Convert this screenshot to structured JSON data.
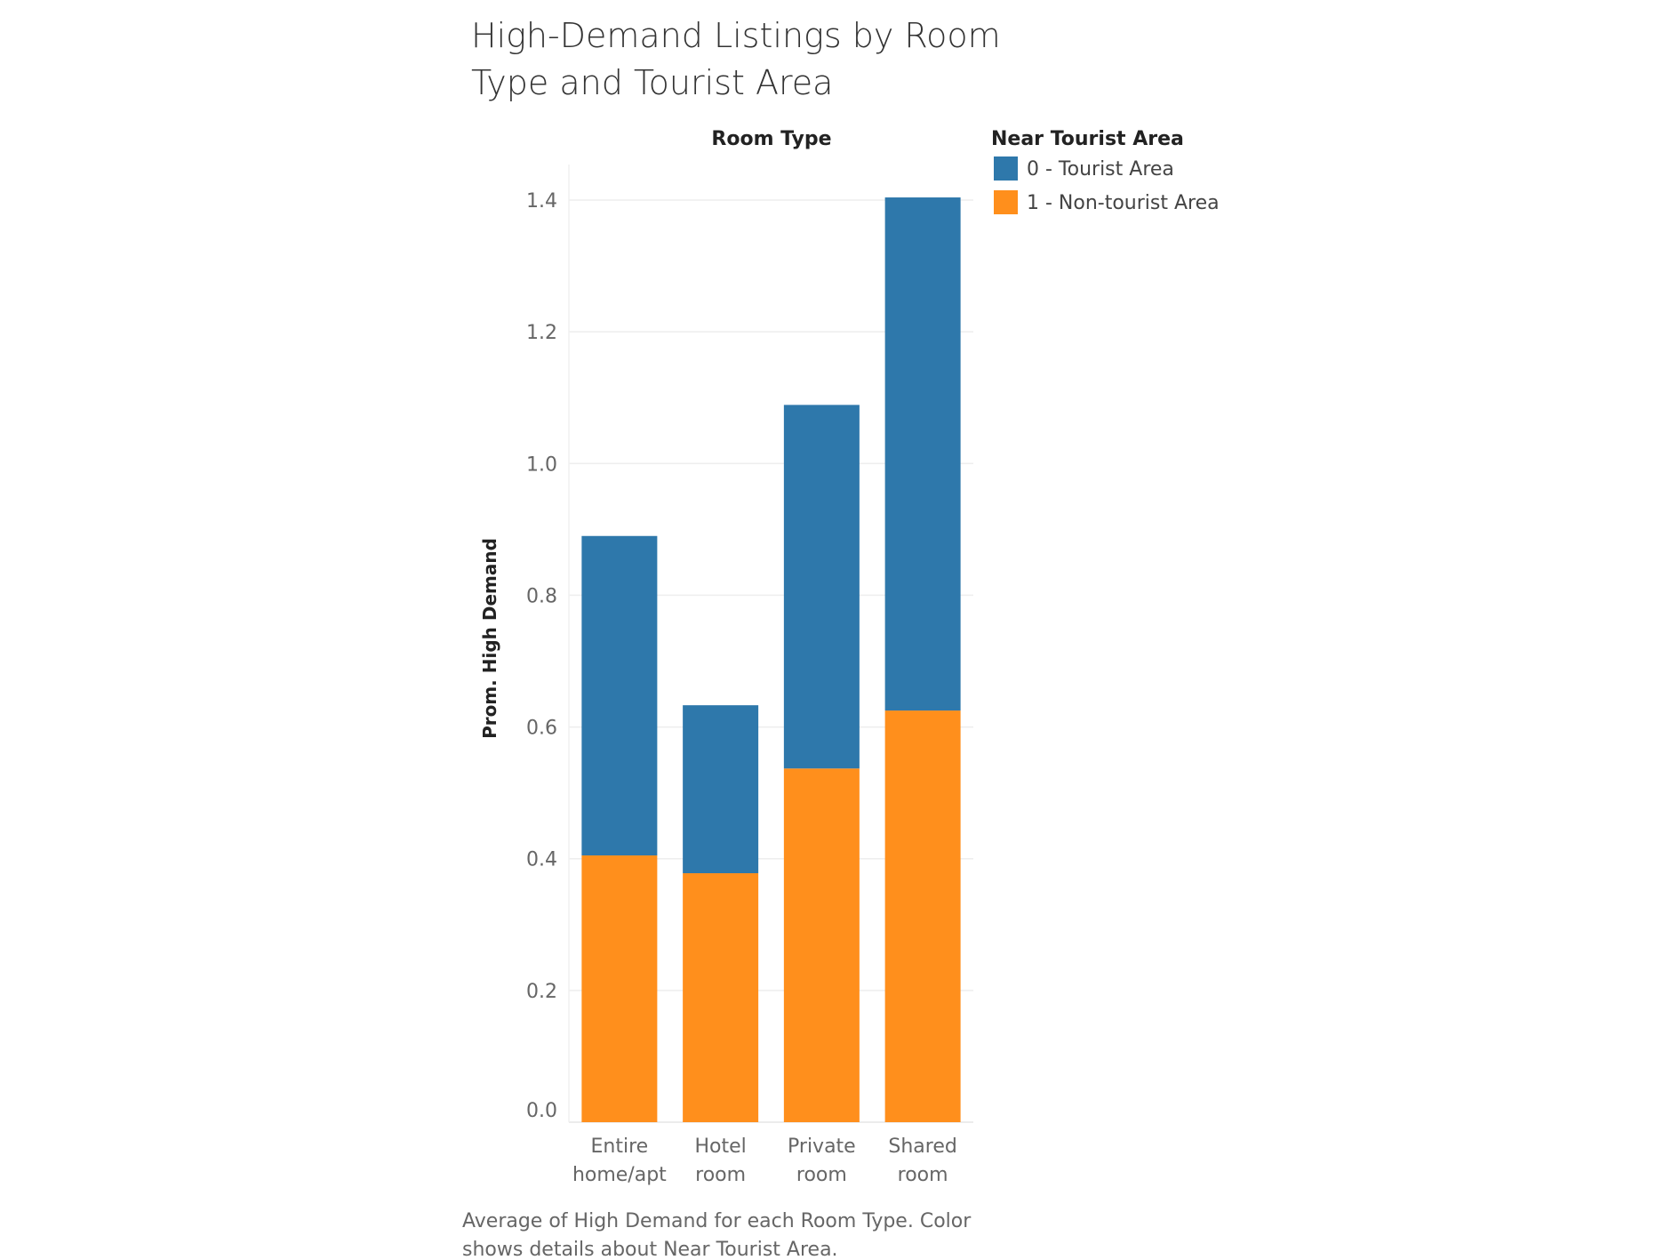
{
  "chart_data": {
    "type": "bar",
    "stacked": true,
    "title_lines": [
      "High-Demand Listings by Room",
      "Type and Tourist Area"
    ],
    "column_header": "Room Type",
    "ylabel": "Prom. High Demand",
    "ylim": [
      0,
      1.4
    ],
    "yticks": [
      "0.0",
      "0.2",
      "0.4",
      "0.6",
      "0.8",
      "1.0",
      "1.2",
      "1.4"
    ],
    "categories": [
      [
        "Entire",
        "home/apt"
      ],
      [
        "Hotel",
        "room"
      ],
      [
        "Private",
        "room"
      ],
      [
        "Shared",
        "room"
      ]
    ],
    "legend_title": "Near Tourist Area",
    "legend_position": "right",
    "grid": true,
    "series": [
      {
        "name": "1 - Non-tourist Area",
        "color": "#FF8F1C",
        "values": [
          0.405,
          0.378,
          0.537,
          0.625
        ]
      },
      {
        "name": "0 - Tourist Area",
        "color": "#2E78AB",
        "values": [
          0.485,
          0.255,
          0.552,
          0.779
        ]
      }
    ],
    "caption_lines": [
      "Average of High Demand for each Room Type.  Color",
      "shows details about Near Tourist Area."
    ]
  }
}
